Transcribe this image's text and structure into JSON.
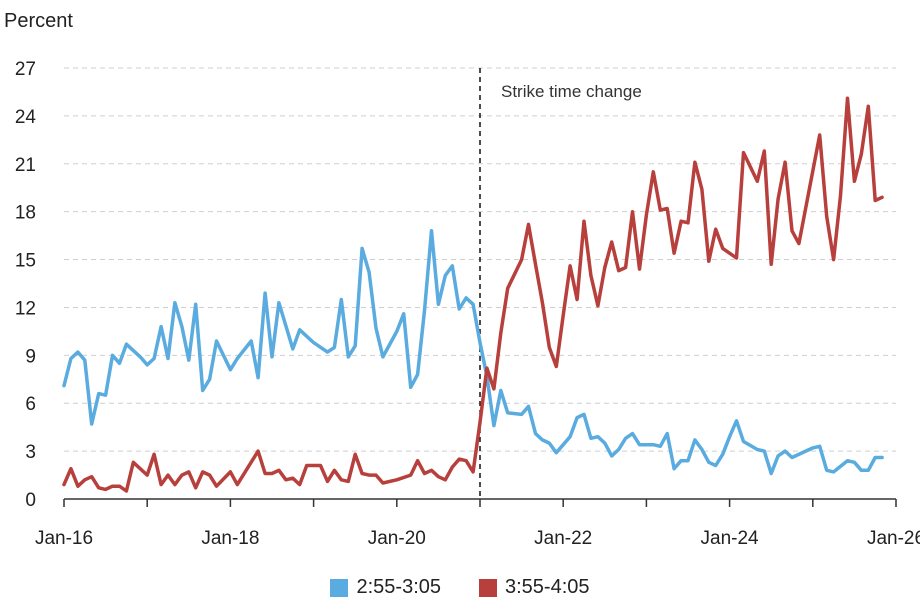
{
  "chart_data": {
    "type": "line",
    "title": "",
    "ylabel": "Percent",
    "xlabel": "",
    "ylim": [
      0,
      27
    ],
    "yticks": [
      0,
      3,
      6,
      9,
      12,
      15,
      18,
      21,
      24,
      27
    ],
    "xlim": [
      "2016-01",
      "2026-01"
    ],
    "xticks": [
      {
        "date": "2016-01",
        "label": "Jan-16"
      },
      {
        "date": "2017-01",
        "label": ""
      },
      {
        "date": "2018-01",
        "label": "Jan-18"
      },
      {
        "date": "2019-01",
        "label": ""
      },
      {
        "date": "2020-01",
        "label": "Jan-20"
      },
      {
        "date": "2021-01",
        "label": ""
      },
      {
        "date": "2022-01",
        "label": "Jan-22"
      },
      {
        "date": "2023-01",
        "label": ""
      },
      {
        "date": "2024-01",
        "label": "Jan-24"
      },
      {
        "date": "2025-01",
        "label": ""
      },
      {
        "date": "2026-01",
        "label": "Jan-26"
      }
    ],
    "grid": true,
    "legend_position": "bottom",
    "annotations": [
      {
        "date": "2021-01",
        "text": "Strike time change",
        "style": "dashed-vertical-line"
      }
    ],
    "series": [
      {
        "name": "2:55-3:05",
        "color": "#5aabdf",
        "points": [
          [
            "2016-01",
            7.1
          ],
          [
            "2016-02",
            8.8
          ],
          [
            "2016-03",
            9.2
          ],
          [
            "2016-04",
            8.7
          ],
          [
            "2016-05",
            4.7
          ],
          [
            "2016-06",
            6.6
          ],
          [
            "2016-07",
            6.5
          ],
          [
            "2016-08",
            9.0
          ],
          [
            "2016-09",
            8.5
          ],
          [
            "2016-10",
            9.7
          ],
          [
            "2016-12",
            8.9
          ],
          [
            "2017-01",
            8.4
          ],
          [
            "2017-02",
            8.8
          ],
          [
            "2017-03",
            10.8
          ],
          [
            "2017-04",
            8.8
          ],
          [
            "2017-05",
            12.3
          ],
          [
            "2017-06",
            10.8
          ],
          [
            "2017-07",
            8.7
          ],
          [
            "2017-08",
            12.2
          ],
          [
            "2017-09",
            6.8
          ],
          [
            "2017-10",
            7.5
          ],
          [
            "2017-11",
            9.9
          ],
          [
            "2018-01",
            8.1
          ],
          [
            "2018-02",
            8.8
          ],
          [
            "2018-04",
            9.9
          ],
          [
            "2018-05",
            7.6
          ],
          [
            "2018-06",
            12.9
          ],
          [
            "2018-07",
            8.9
          ],
          [
            "2018-08",
            12.3
          ],
          [
            "2018-10",
            9.4
          ],
          [
            "2018-11",
            10.6
          ],
          [
            "2019-01",
            9.8
          ],
          [
            "2019-03",
            9.2
          ],
          [
            "2019-04",
            9.5
          ],
          [
            "2019-05",
            12.5
          ],
          [
            "2019-06",
            8.9
          ],
          [
            "2019-07",
            9.6
          ],
          [
            "2019-08",
            15.7
          ],
          [
            "2019-09",
            14.2
          ],
          [
            "2019-10",
            10.7
          ],
          [
            "2019-11",
            8.9
          ],
          [
            "2020-01",
            10.5
          ],
          [
            "2020-02",
            11.6
          ],
          [
            "2020-03",
            7.0
          ],
          [
            "2020-04",
            7.8
          ],
          [
            "2020-05",
            11.8
          ],
          [
            "2020-06",
            16.8
          ],
          [
            "2020-07",
            12.2
          ],
          [
            "2020-08",
            14.0
          ],
          [
            "2020-09",
            14.6
          ],
          [
            "2020-10",
            11.9
          ],
          [
            "2020-11",
            12.6
          ],
          [
            "2020-12",
            12.2
          ],
          [
            "2021-01",
            9.8
          ],
          [
            "2021-02",
            7.7
          ],
          [
            "2021-03",
            4.6
          ],
          [
            "2021-04",
            6.8
          ],
          [
            "2021-05",
            5.4
          ],
          [
            "2021-07",
            5.3
          ],
          [
            "2021-08",
            5.8
          ],
          [
            "2021-09",
            4.1
          ],
          [
            "2021-10",
            3.7
          ],
          [
            "2021-11",
            3.5
          ],
          [
            "2021-12",
            2.9
          ],
          [
            "2022-02",
            3.9
          ],
          [
            "2022-03",
            5.1
          ],
          [
            "2022-04",
            5.3
          ],
          [
            "2022-05",
            3.8
          ],
          [
            "2022-06",
            3.9
          ],
          [
            "2022-07",
            3.5
          ],
          [
            "2022-08",
            2.7
          ],
          [
            "2022-09",
            3.1
          ],
          [
            "2022-10",
            3.8
          ],
          [
            "2022-11",
            4.1
          ],
          [
            "2022-12",
            3.4
          ],
          [
            "2023-02",
            3.4
          ],
          [
            "2023-03",
            3.3
          ],
          [
            "2023-04",
            4.1
          ],
          [
            "2023-05",
            1.9
          ],
          [
            "2023-06",
            2.4
          ],
          [
            "2023-07",
            2.4
          ],
          [
            "2023-08",
            3.7
          ],
          [
            "2023-09",
            3.1
          ],
          [
            "2023-10",
            2.3
          ],
          [
            "2023-11",
            2.1
          ],
          [
            "2023-12",
            2.8
          ],
          [
            "2024-01",
            3.9
          ],
          [
            "2024-02",
            4.9
          ],
          [
            "2024-03",
            3.6
          ],
          [
            "2024-05",
            3.1
          ],
          [
            "2024-06",
            3.0
          ],
          [
            "2024-07",
            1.6
          ],
          [
            "2024-08",
            2.7
          ],
          [
            "2024-09",
            3.0
          ],
          [
            "2024-10",
            2.6
          ],
          [
            "2025-01",
            3.2
          ],
          [
            "2025-02",
            3.3
          ],
          [
            "2025-03",
            1.8
          ],
          [
            "2025-04",
            1.7
          ],
          [
            "2025-06",
            2.4
          ],
          [
            "2025-07",
            2.3
          ],
          [
            "2025-08",
            1.8
          ],
          [
            "2025-09",
            1.8
          ],
          [
            "2025-10",
            2.6
          ],
          [
            "2025-11",
            2.6
          ]
        ]
      },
      {
        "name": "3:55-4:05",
        "color": "#b8403c",
        "points": [
          [
            "2016-01",
            0.9
          ],
          [
            "2016-02",
            1.9
          ],
          [
            "2016-03",
            0.8
          ],
          [
            "2016-04",
            1.2
          ],
          [
            "2016-05",
            1.4
          ],
          [
            "2016-06",
            0.7
          ],
          [
            "2016-07",
            0.6
          ],
          [
            "2016-08",
            0.8
          ],
          [
            "2016-09",
            0.8
          ],
          [
            "2016-10",
            0.5
          ],
          [
            "2016-11",
            2.3
          ],
          [
            "2017-01",
            1.5
          ],
          [
            "2017-02",
            2.8
          ],
          [
            "2017-03",
            0.9
          ],
          [
            "2017-04",
            1.5
          ],
          [
            "2017-05",
            0.9
          ],
          [
            "2017-06",
            1.5
          ],
          [
            "2017-07",
            1.7
          ],
          [
            "2017-08",
            0.7
          ],
          [
            "2017-09",
            1.7
          ],
          [
            "2017-10",
            1.5
          ],
          [
            "2017-11",
            0.8
          ],
          [
            "2018-01",
            1.7
          ],
          [
            "2018-02",
            0.9
          ],
          [
            "2018-05",
            3.0
          ],
          [
            "2018-06",
            1.6
          ],
          [
            "2018-07",
            1.6
          ],
          [
            "2018-08",
            1.8
          ],
          [
            "2018-09",
            1.2
          ],
          [
            "2018-10",
            1.3
          ],
          [
            "2018-11",
            0.9
          ],
          [
            "2018-12",
            2.1
          ],
          [
            "2019-02",
            2.1
          ],
          [
            "2019-03",
            1.1
          ],
          [
            "2019-04",
            1.8
          ],
          [
            "2019-05",
            1.2
          ],
          [
            "2019-06",
            1.1
          ],
          [
            "2019-07",
            2.8
          ],
          [
            "2019-08",
            1.6
          ],
          [
            "2019-09",
            1.5
          ],
          [
            "2019-10",
            1.5
          ],
          [
            "2019-11",
            1.0
          ],
          [
            "2020-01",
            1.2
          ],
          [
            "2020-03",
            1.5
          ],
          [
            "2020-04",
            2.4
          ],
          [
            "2020-05",
            1.6
          ],
          [
            "2020-06",
            1.8
          ],
          [
            "2020-07",
            1.4
          ],
          [
            "2020-08",
            1.2
          ],
          [
            "2020-09",
            2.0
          ],
          [
            "2020-10",
            2.5
          ],
          [
            "2020-11",
            2.4
          ],
          [
            "2020-12",
            1.7
          ],
          [
            "2021-01",
            4.8
          ],
          [
            "2021-02",
            8.2
          ],
          [
            "2021-03",
            6.9
          ],
          [
            "2021-04",
            10.4
          ],
          [
            "2021-05",
            13.2
          ],
          [
            "2021-07",
            15.0
          ],
          [
            "2021-08",
            17.2
          ],
          [
            "2021-09",
            14.7
          ],
          [
            "2021-10",
            12.3
          ],
          [
            "2021-11",
            9.5
          ],
          [
            "2021-12",
            8.3
          ],
          [
            "2022-01",
            11.5
          ],
          [
            "2022-02",
            14.6
          ],
          [
            "2022-03",
            12.5
          ],
          [
            "2022-04",
            17.4
          ],
          [
            "2022-05",
            14.0
          ],
          [
            "2022-06",
            12.1
          ],
          [
            "2022-07",
            14.5
          ],
          [
            "2022-08",
            16.1
          ],
          [
            "2022-09",
            14.3
          ],
          [
            "2022-10",
            14.5
          ],
          [
            "2022-11",
            18.0
          ],
          [
            "2022-12",
            14.4
          ],
          [
            "2023-01",
            17.8
          ],
          [
            "2023-02",
            20.5
          ],
          [
            "2023-03",
            18.1
          ],
          [
            "2023-04",
            18.2
          ],
          [
            "2023-05",
            15.4
          ],
          [
            "2023-06",
            17.4
          ],
          [
            "2023-07",
            17.3
          ],
          [
            "2023-08",
            21.1
          ],
          [
            "2023-09",
            19.4
          ],
          [
            "2023-10",
            14.9
          ],
          [
            "2023-11",
            16.9
          ],
          [
            "2023-12",
            15.7
          ],
          [
            "2024-02",
            15.1
          ],
          [
            "2024-03",
            21.7
          ],
          [
            "2024-05",
            19.9
          ],
          [
            "2024-06",
            21.8
          ],
          [
            "2024-07",
            14.7
          ],
          [
            "2024-08",
            18.8
          ],
          [
            "2024-09",
            21.1
          ],
          [
            "2024-10",
            16.8
          ],
          [
            "2024-11",
            16.0
          ],
          [
            "2025-02",
            22.8
          ],
          [
            "2025-03",
            17.7
          ],
          [
            "2025-04",
            15.0
          ],
          [
            "2025-05",
            19.0
          ],
          [
            "2025-06",
            25.1
          ],
          [
            "2025-07",
            19.9
          ],
          [
            "2025-08",
            21.6
          ],
          [
            "2025-09",
            24.6
          ],
          [
            "2025-10",
            18.7
          ],
          [
            "2025-11",
            18.9
          ]
        ]
      }
    ]
  }
}
